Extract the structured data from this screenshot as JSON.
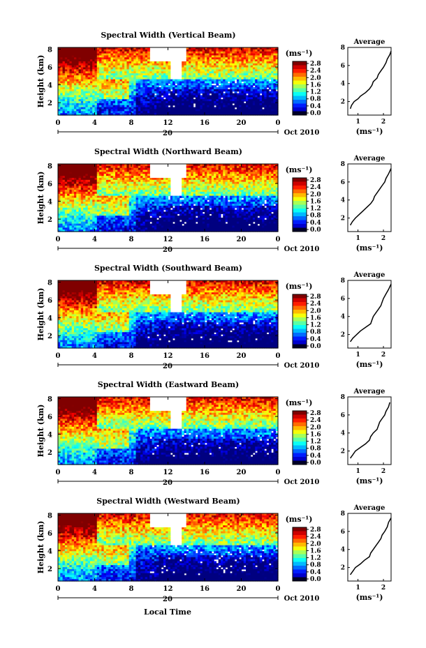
{
  "chart_data": [
    {
      "type": "heatmap",
      "title": "Spectral Width (Vertical Beam)",
      "ylabel": "Height (km)",
      "xticks": [
        "0",
        "4",
        "8",
        "12",
        "16",
        "20",
        "0"
      ],
      "yticks": [
        "2",
        "4",
        "6",
        "8"
      ],
      "date_tick": "20",
      "date_label": "Oct 2010",
      "colorbar_unit": "(ms⁻¹)",
      "colorbar_ticks": [
        "0.0",
        "0.4",
        "0.8",
        "1.2",
        "1.6",
        "2.0",
        "2.4",
        "2.8"
      ],
      "profile": {
        "title": "Average",
        "xticks": [
          "1",
          "2"
        ],
        "xlim": [
          0.6,
          2.3
        ],
        "ylim": [
          0.5,
          8
        ],
        "yticks": [
          "2",
          "4",
          "6",
          "8"
        ],
        "xlabel": "(ms⁻¹)",
        "points": [
          [
            0.7,
            1.2
          ],
          [
            0.75,
            1.6
          ],
          [
            0.85,
            2.0
          ],
          [
            1.0,
            2.3
          ],
          [
            1.1,
            2.6
          ],
          [
            1.3,
            3.0
          ],
          [
            1.45,
            3.4
          ],
          [
            1.55,
            3.8
          ],
          [
            1.6,
            4.2
          ],
          [
            1.75,
            4.6
          ],
          [
            1.8,
            5.0
          ],
          [
            1.9,
            5.4
          ],
          [
            2.0,
            5.8
          ],
          [
            2.1,
            6.3
          ],
          [
            2.15,
            6.7
          ],
          [
            2.25,
            7.2
          ],
          [
            2.3,
            7.6
          ]
        ]
      }
    },
    {
      "type": "heatmap",
      "title": "Spectral Width (Northward Beam)",
      "ylabel": "Height (km)",
      "xticks": [
        "0",
        "4",
        "8",
        "12",
        "16",
        "20",
        "0"
      ],
      "yticks": [
        "2",
        "4",
        "6",
        "8"
      ],
      "date_tick": "20",
      "date_label": "Oct 2010",
      "colorbar_unit": "(ms⁻¹)",
      "colorbar_ticks": [
        "0.0",
        "0.4",
        "0.8",
        "1.2",
        "1.6",
        "2.0",
        "2.4",
        "2.8"
      ],
      "profile": {
        "title": "Average",
        "xticks": [
          "1",
          "2"
        ],
        "xlim": [
          0.6,
          2.3
        ],
        "ylim": [
          0.5,
          8
        ],
        "yticks": [
          "2",
          "4",
          "6",
          "8"
        ],
        "xlabel": "(ms⁻¹)",
        "points": [
          [
            0.7,
            1.2
          ],
          [
            0.78,
            1.6
          ],
          [
            0.9,
            2.0
          ],
          [
            1.05,
            2.4
          ],
          [
            1.2,
            2.8
          ],
          [
            1.35,
            3.2
          ],
          [
            1.5,
            3.6
          ],
          [
            1.6,
            4.0
          ],
          [
            1.65,
            4.4
          ],
          [
            1.75,
            4.8
          ],
          [
            1.85,
            5.2
          ],
          [
            1.95,
            5.6
          ],
          [
            2.05,
            6.0
          ],
          [
            2.1,
            6.4
          ],
          [
            2.2,
            6.9
          ],
          [
            2.3,
            7.5
          ]
        ]
      }
    },
    {
      "type": "heatmap",
      "title": "Spectral Width (Southward Beam)",
      "ylabel": "Height (km)",
      "xticks": [
        "0",
        "4",
        "8",
        "12",
        "16",
        "20",
        "0"
      ],
      "yticks": [
        "2",
        "4",
        "6",
        "8"
      ],
      "date_tick": "20",
      "date_label": "Oct 2010",
      "colorbar_unit": "(ms⁻¹)",
      "colorbar_ticks": [
        "0.0",
        "0.4",
        "0.8",
        "1.2",
        "1.6",
        "2.0",
        "2.4",
        "2.8"
      ],
      "profile": {
        "title": "Average",
        "xticks": [
          "1",
          "2"
        ],
        "xlim": [
          0.6,
          2.3
        ],
        "ylim": [
          0.5,
          8
        ],
        "yticks": [
          "2",
          "4",
          "6",
          "8"
        ],
        "xlabel": "(ms⁻¹)",
        "points": [
          [
            0.7,
            1.2
          ],
          [
            0.8,
            1.6
          ],
          [
            0.95,
            2.0
          ],
          [
            1.1,
            2.4
          ],
          [
            1.3,
            2.8
          ],
          [
            1.5,
            3.2
          ],
          [
            1.55,
            3.6
          ],
          [
            1.6,
            4.0
          ],
          [
            1.7,
            4.4
          ],
          [
            1.8,
            4.8
          ],
          [
            1.9,
            5.2
          ],
          [
            1.95,
            5.6
          ],
          [
            2.0,
            6.0
          ],
          [
            2.1,
            6.5
          ],
          [
            2.2,
            7.0
          ],
          [
            2.3,
            7.6
          ]
        ]
      }
    },
    {
      "type": "heatmap",
      "title": "Spectral Width (Eastward Beam)",
      "ylabel": "Height (km)",
      "xticks": [
        "0",
        "4",
        "8",
        "12",
        "16",
        "20",
        "0"
      ],
      "yticks": [
        "2",
        "4",
        "6",
        "8"
      ],
      "date_tick": "20",
      "date_label": "Oct 2010",
      "colorbar_unit": "(ms⁻¹)",
      "colorbar_ticks": [
        "0.0",
        "0.4",
        "0.8",
        "1.2",
        "1.6",
        "2.0",
        "2.4",
        "2.8"
      ],
      "profile": {
        "title": "Average",
        "xticks": [
          "1",
          "2"
        ],
        "xlim": [
          0.6,
          2.3
        ],
        "ylim": [
          0.5,
          8
        ],
        "yticks": [
          "2",
          "4",
          "6",
          "8"
        ],
        "xlabel": "(ms⁻¹)",
        "points": [
          [
            0.7,
            1.2
          ],
          [
            0.8,
            1.6
          ],
          [
            0.9,
            2.0
          ],
          [
            1.1,
            2.4
          ],
          [
            1.3,
            2.8
          ],
          [
            1.45,
            3.2
          ],
          [
            1.5,
            3.6
          ],
          [
            1.6,
            4.0
          ],
          [
            1.75,
            4.4
          ],
          [
            1.8,
            4.8
          ],
          [
            1.85,
            5.2
          ],
          [
            1.95,
            5.6
          ],
          [
            2.05,
            6.0
          ],
          [
            2.1,
            6.4
          ],
          [
            2.2,
            6.9
          ],
          [
            2.25,
            7.4
          ]
        ]
      }
    },
    {
      "type": "heatmap",
      "title": "Spectral Width (Westward Beam)",
      "ylabel": "Height (km)",
      "xticks": [
        "0",
        "4",
        "8",
        "12",
        "16",
        "20",
        "0"
      ],
      "yticks": [
        "2",
        "4",
        "6",
        "8"
      ],
      "date_tick": "20",
      "date_label": "Oct 2010",
      "colorbar_unit": "(ms⁻¹)",
      "colorbar_ticks": [
        "0.0",
        "0.4",
        "0.8",
        "1.2",
        "1.6",
        "2.0",
        "2.4",
        "2.8"
      ],
      "xlabel": "Local Time",
      "profile": {
        "title": "Average",
        "xticks": [
          "1",
          "2"
        ],
        "xlim": [
          0.6,
          2.3
        ],
        "ylim": [
          0.5,
          8
        ],
        "yticks": [
          "2",
          "4",
          "6",
          "8"
        ],
        "xlabel": "(ms⁻¹)",
        "points": [
          [
            0.7,
            1.2
          ],
          [
            0.8,
            1.6
          ],
          [
            0.9,
            2.0
          ],
          [
            1.1,
            2.4
          ],
          [
            1.25,
            2.8
          ],
          [
            1.45,
            3.2
          ],
          [
            1.5,
            3.6
          ],
          [
            1.6,
            4.0
          ],
          [
            1.7,
            4.4
          ],
          [
            1.8,
            4.8
          ],
          [
            1.9,
            5.2
          ],
          [
            1.95,
            5.6
          ],
          [
            2.05,
            6.0
          ],
          [
            2.15,
            6.5
          ],
          [
            2.2,
            7.0
          ],
          [
            2.3,
            7.5
          ]
        ]
      }
    }
  ]
}
